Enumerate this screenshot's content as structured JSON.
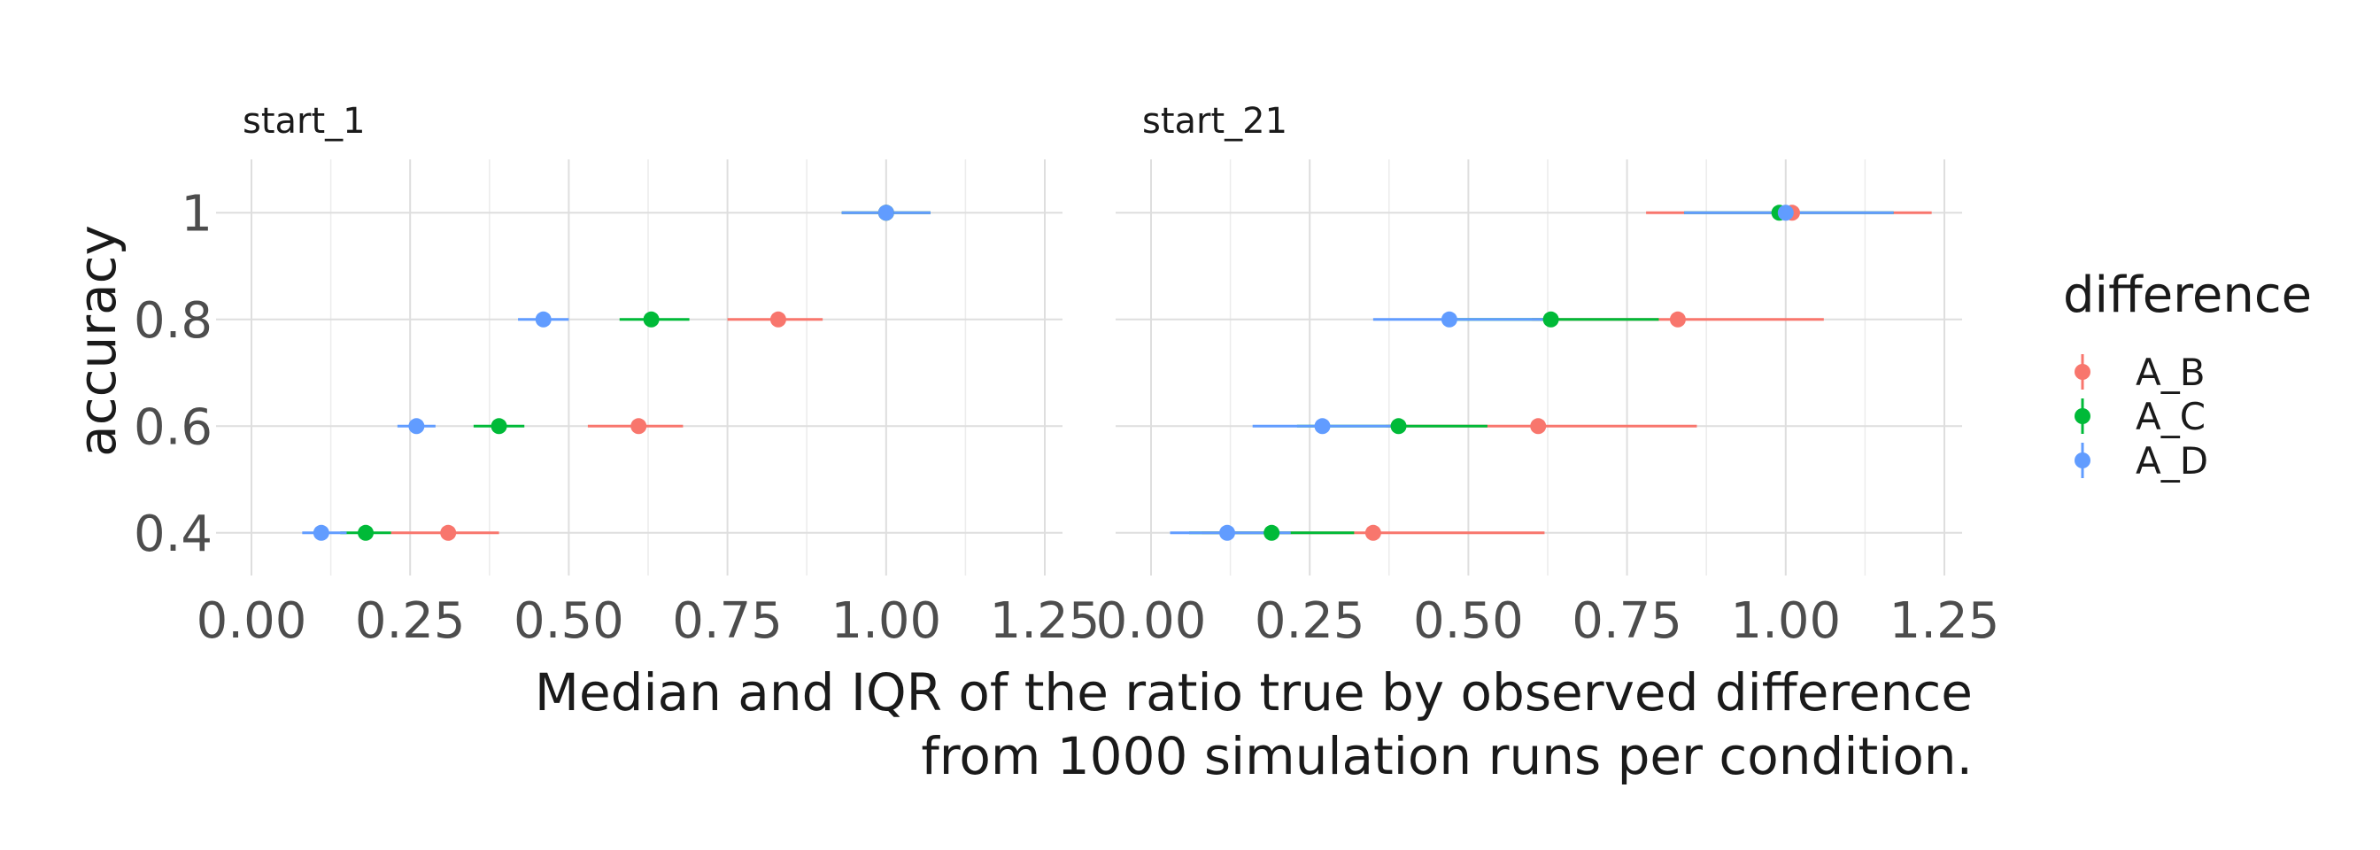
{
  "chart_data": {
    "type": "pointrange",
    "facets": [
      {
        "title": "start_1",
        "series": [
          {
            "name": "A_B",
            "color": "#F8766D",
            "points": [
              {
                "y": 1.0,
                "median": 1.0,
                "low": 0.93,
                "high": 1.07
              },
              {
                "y": 0.8,
                "median": 0.83,
                "low": 0.75,
                "high": 0.9
              },
              {
                "y": 0.6,
                "median": 0.61,
                "low": 0.53,
                "high": 0.68
              },
              {
                "y": 0.4,
                "median": 0.31,
                "low": 0.22,
                "high": 0.39
              }
            ]
          },
          {
            "name": "A_C",
            "color": "#00BA38",
            "points": [
              {
                "y": 1.0,
                "median": 1.0,
                "low": 0.93,
                "high": 1.07
              },
              {
                "y": 0.8,
                "median": 0.63,
                "low": 0.58,
                "high": 0.69
              },
              {
                "y": 0.6,
                "median": 0.39,
                "low": 0.35,
                "high": 0.43
              },
              {
                "y": 0.4,
                "median": 0.18,
                "low": 0.14,
                "high": 0.22
              }
            ]
          },
          {
            "name": "A_D",
            "color": "#619CFF",
            "points": [
              {
                "y": 1.0,
                "median": 1.0,
                "low": 0.93,
                "high": 1.07
              },
              {
                "y": 0.8,
                "median": 0.46,
                "low": 0.42,
                "high": 0.5
              },
              {
                "y": 0.6,
                "median": 0.26,
                "low": 0.23,
                "high": 0.29
              },
              {
                "y": 0.4,
                "median": 0.11,
                "low": 0.08,
                "high": 0.15
              }
            ]
          }
        ]
      },
      {
        "title": "start_21",
        "series": [
          {
            "name": "A_B",
            "color": "#F8766D",
            "points": [
              {
                "y": 1.0,
                "median": 1.01,
                "low": 0.78,
                "high": 1.23
              },
              {
                "y": 0.8,
                "median": 0.83,
                "low": 0.6,
                "high": 1.06
              },
              {
                "y": 0.6,
                "median": 0.61,
                "low": 0.37,
                "high": 0.86
              },
              {
                "y": 0.4,
                "median": 0.35,
                "low": 0.08,
                "high": 0.62
              }
            ]
          },
          {
            "name": "A_C",
            "color": "#00BA38",
            "points": [
              {
                "y": 1.0,
                "median": 0.99,
                "low": 0.84,
                "high": 1.17
              },
              {
                "y": 0.8,
                "median": 0.63,
                "low": 0.46,
                "high": 0.8
              },
              {
                "y": 0.6,
                "median": 0.39,
                "low": 0.23,
                "high": 0.53
              },
              {
                "y": 0.4,
                "median": 0.19,
                "low": 0.06,
                "high": 0.32
              }
            ]
          },
          {
            "name": "A_D",
            "color": "#619CFF",
            "points": [
              {
                "y": 1.0,
                "median": 1.0,
                "low": 0.84,
                "high": 1.17
              },
              {
                "y": 0.8,
                "median": 0.47,
                "low": 0.35,
                "high": 0.63
              },
              {
                "y": 0.6,
                "median": 0.27,
                "low": 0.16,
                "high": 0.39
              },
              {
                "y": 0.4,
                "median": 0.12,
                "low": 0.03,
                "high": 0.22
              }
            ]
          }
        ]
      }
    ],
    "xlim": [
      0,
      1.25
    ],
    "x_ticks": [
      0,
      0.25,
      0.5,
      0.75,
      1.0,
      1.25
    ],
    "x_tick_labels": [
      "0.00",
      "0.25",
      "0.50",
      "0.75",
      "1.00",
      "1.25"
    ],
    "y_ticks": [
      0.4,
      0.6,
      0.8,
      1.0
    ],
    "y_tick_labels": [
      "0.4",
      "0.6",
      "0.8",
      "1"
    ],
    "ylim": [
      0.32,
      1.1
    ],
    "ylabel": "accuracy",
    "xlabel": "",
    "caption": [
      "Median and IQR of the ratio true by observed difference",
      "from 1000 simulation runs per condition."
    ],
    "legend": {
      "title": "difference",
      "position": "right",
      "entries": [
        "A_B",
        "A_C",
        "A_D"
      ]
    },
    "grid": true
  }
}
